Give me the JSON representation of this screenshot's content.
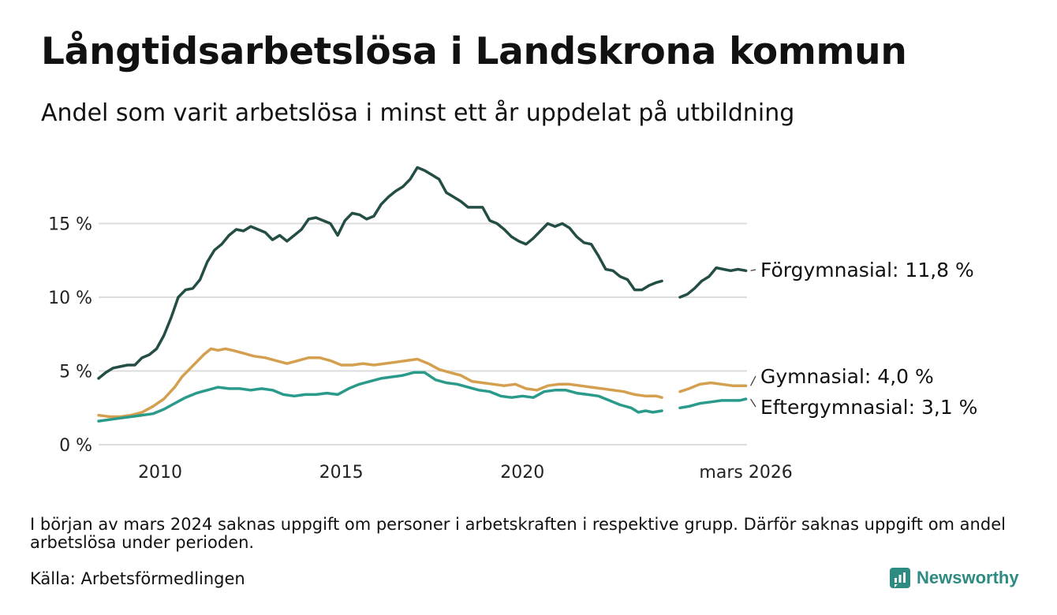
{
  "title": "Långtidsarbetslösa i Landskrona kommun",
  "subtitle": "Andel som varit arbetslösa i minst ett år uppdelat på utbildning",
  "footnote": "I början av mars 2024 saknas uppgift om personer i arbetskraften i respektive grupp. Därför saknas uppgift om andel arbetslösa under perioden.",
  "source": "Källa: Arbetsförmedlingen",
  "brand": "Newsworthy",
  "chart_data": {
    "type": "line",
    "title": "Långtidsarbetslösa i Landskrona kommun",
    "xlabel": "",
    "ylabel": "",
    "xlim": [
      2008.3,
      2026.2
    ],
    "ylim": [
      0,
      20
    ],
    "grid": true,
    "x_ticks": [
      {
        "value": 2010,
        "label": "2010"
      },
      {
        "value": 2015,
        "label": "2015"
      },
      {
        "value": 2020,
        "label": "2020"
      },
      {
        "value": 2026.17,
        "label": "mars 2026"
      }
    ],
    "y_ticks": [
      {
        "value": 0,
        "label": "0 %"
      },
      {
        "value": 5,
        "label": "5 %"
      },
      {
        "value": 10,
        "label": "10 %"
      },
      {
        "value": 15,
        "label": "15 %"
      }
    ],
    "gap": [
      2023.9,
      2024.3
    ],
    "series": [
      {
        "name": "Förgymnasial",
        "label": "Förgymnasial: 11,8 %",
        "color": "#234d45",
        "points": [
          [
            2008.3,
            4.5
          ],
          [
            2008.5,
            4.9
          ],
          [
            2008.7,
            5.2
          ],
          [
            2008.9,
            5.3
          ],
          [
            2009.1,
            5.4
          ],
          [
            2009.3,
            5.4
          ],
          [
            2009.5,
            5.9
          ],
          [
            2009.7,
            6.1
          ],
          [
            2009.9,
            6.5
          ],
          [
            2010.1,
            7.4
          ],
          [
            2010.3,
            8.6
          ],
          [
            2010.5,
            10.0
          ],
          [
            2010.7,
            10.5
          ],
          [
            2010.9,
            10.6
          ],
          [
            2011.1,
            11.2
          ],
          [
            2011.3,
            12.4
          ],
          [
            2011.5,
            13.2
          ],
          [
            2011.7,
            13.6
          ],
          [
            2011.9,
            14.2
          ],
          [
            2012.1,
            14.6
          ],
          [
            2012.3,
            14.5
          ],
          [
            2012.5,
            14.8
          ],
          [
            2012.7,
            14.6
          ],
          [
            2012.9,
            14.4
          ],
          [
            2013.1,
            13.9
          ],
          [
            2013.3,
            14.2
          ],
          [
            2013.5,
            13.8
          ],
          [
            2013.7,
            14.2
          ],
          [
            2013.9,
            14.6
          ],
          [
            2014.1,
            15.3
          ],
          [
            2014.3,
            15.4
          ],
          [
            2014.5,
            15.2
          ],
          [
            2014.7,
            15.0
          ],
          [
            2014.9,
            14.2
          ],
          [
            2015.1,
            15.2
          ],
          [
            2015.3,
            15.7
          ],
          [
            2015.5,
            15.6
          ],
          [
            2015.7,
            15.3
          ],
          [
            2015.9,
            15.5
          ],
          [
            2016.1,
            16.3
          ],
          [
            2016.3,
            16.8
          ],
          [
            2016.5,
            17.2
          ],
          [
            2016.7,
            17.5
          ],
          [
            2016.9,
            18.0
          ],
          [
            2017.1,
            18.8
          ],
          [
            2017.3,
            18.6
          ],
          [
            2017.5,
            18.3
          ],
          [
            2017.7,
            18.0
          ],
          [
            2017.9,
            17.1
          ],
          [
            2018.1,
            16.8
          ],
          [
            2018.3,
            16.5
          ],
          [
            2018.5,
            16.1
          ],
          [
            2018.7,
            16.1
          ],
          [
            2018.9,
            16.1
          ],
          [
            2019.1,
            15.2
          ],
          [
            2019.3,
            15.0
          ],
          [
            2019.5,
            14.6
          ],
          [
            2019.7,
            14.1
          ],
          [
            2019.9,
            13.8
          ],
          [
            2020.1,
            13.6
          ],
          [
            2020.3,
            14.0
          ],
          [
            2020.5,
            14.5
          ],
          [
            2020.7,
            15.0
          ],
          [
            2020.9,
            14.8
          ],
          [
            2021.1,
            15.0
          ],
          [
            2021.3,
            14.7
          ],
          [
            2021.5,
            14.1
          ],
          [
            2021.7,
            13.7
          ],
          [
            2021.9,
            13.6
          ],
          [
            2022.1,
            12.8
          ],
          [
            2022.3,
            11.9
          ],
          [
            2022.5,
            11.8
          ],
          [
            2022.7,
            11.4
          ],
          [
            2022.9,
            11.2
          ],
          [
            2023.1,
            10.5
          ],
          [
            2023.3,
            10.5
          ],
          [
            2023.5,
            10.8
          ],
          [
            2023.7,
            11.0
          ],
          [
            2023.85,
            11.1
          ],
          [
            2024.35,
            10.0
          ],
          [
            2024.55,
            10.2
          ],
          [
            2024.75,
            10.6
          ],
          [
            2024.95,
            11.1
          ],
          [
            2025.15,
            11.4
          ],
          [
            2025.35,
            12.0
          ],
          [
            2025.55,
            11.9
          ],
          [
            2025.75,
            11.8
          ],
          [
            2025.95,
            11.9
          ],
          [
            2026.17,
            11.8
          ]
        ]
      },
      {
        "name": "Gymnasial",
        "label": "Gymnasial:  4,0 %",
        "color": "#d4a04f",
        "points": [
          [
            2008.3,
            2.0
          ],
          [
            2008.6,
            1.9
          ],
          [
            2008.9,
            1.9
          ],
          [
            2009.2,
            2.0
          ],
          [
            2009.5,
            2.2
          ],
          [
            2009.8,
            2.6
          ],
          [
            2010.1,
            3.1
          ],
          [
            2010.4,
            3.9
          ],
          [
            2010.6,
            4.6
          ],
          [
            2010.8,
            5.1
          ],
          [
            2011.0,
            5.6
          ],
          [
            2011.2,
            6.1
          ],
          [
            2011.4,
            6.5
          ],
          [
            2011.6,
            6.4
          ],
          [
            2011.8,
            6.5
          ],
          [
            2012.0,
            6.4
          ],
          [
            2012.3,
            6.2
          ],
          [
            2012.6,
            6.0
          ],
          [
            2012.9,
            5.9
          ],
          [
            2013.2,
            5.7
          ],
          [
            2013.5,
            5.5
          ],
          [
            2013.8,
            5.7
          ],
          [
            2014.1,
            5.9
          ],
          [
            2014.4,
            5.9
          ],
          [
            2014.7,
            5.7
          ],
          [
            2015.0,
            5.4
          ],
          [
            2015.3,
            5.4
          ],
          [
            2015.6,
            5.5
          ],
          [
            2015.9,
            5.4
          ],
          [
            2016.2,
            5.5
          ],
          [
            2016.5,
            5.6
          ],
          [
            2016.8,
            5.7
          ],
          [
            2017.1,
            5.8
          ],
          [
            2017.4,
            5.5
          ],
          [
            2017.7,
            5.1
          ],
          [
            2018.0,
            4.9
          ],
          [
            2018.3,
            4.7
          ],
          [
            2018.6,
            4.3
          ],
          [
            2018.9,
            4.2
          ],
          [
            2019.2,
            4.1
          ],
          [
            2019.5,
            4.0
          ],
          [
            2019.8,
            4.1
          ],
          [
            2020.1,
            3.8
          ],
          [
            2020.4,
            3.7
          ],
          [
            2020.7,
            4.0
          ],
          [
            2021.0,
            4.1
          ],
          [
            2021.3,
            4.1
          ],
          [
            2021.6,
            4.0
          ],
          [
            2021.9,
            3.9
          ],
          [
            2022.2,
            3.8
          ],
          [
            2022.5,
            3.7
          ],
          [
            2022.8,
            3.6
          ],
          [
            2023.1,
            3.4
          ],
          [
            2023.4,
            3.3
          ],
          [
            2023.7,
            3.3
          ],
          [
            2023.85,
            3.2
          ],
          [
            2024.35,
            3.6
          ],
          [
            2024.6,
            3.8
          ],
          [
            2024.9,
            4.1
          ],
          [
            2025.2,
            4.2
          ],
          [
            2025.5,
            4.1
          ],
          [
            2025.8,
            4.0
          ],
          [
            2026.0,
            4.0
          ],
          [
            2026.17,
            4.0
          ]
        ]
      },
      {
        "name": "Eftergymnasial",
        "label": "Eftergymnasial:  3,1 %",
        "color": "#2a9a8a",
        "points": [
          [
            2008.3,
            1.6
          ],
          [
            2008.6,
            1.7
          ],
          [
            2008.9,
            1.8
          ],
          [
            2009.2,
            1.9
          ],
          [
            2009.5,
            2.0
          ],
          [
            2009.8,
            2.1
          ],
          [
            2010.1,
            2.4
          ],
          [
            2010.4,
            2.8
          ],
          [
            2010.7,
            3.2
          ],
          [
            2011.0,
            3.5
          ],
          [
            2011.3,
            3.7
          ],
          [
            2011.6,
            3.9
          ],
          [
            2011.9,
            3.8
          ],
          [
            2012.2,
            3.8
          ],
          [
            2012.5,
            3.7
          ],
          [
            2012.8,
            3.8
          ],
          [
            2013.1,
            3.7
          ],
          [
            2013.4,
            3.4
          ],
          [
            2013.7,
            3.3
          ],
          [
            2014.0,
            3.4
          ],
          [
            2014.3,
            3.4
          ],
          [
            2014.6,
            3.5
          ],
          [
            2014.9,
            3.4
          ],
          [
            2015.2,
            3.8
          ],
          [
            2015.5,
            4.1
          ],
          [
            2015.8,
            4.3
          ],
          [
            2016.1,
            4.5
          ],
          [
            2016.4,
            4.6
          ],
          [
            2016.7,
            4.7
          ],
          [
            2017.0,
            4.9
          ],
          [
            2017.3,
            4.9
          ],
          [
            2017.6,
            4.4
          ],
          [
            2017.9,
            4.2
          ],
          [
            2018.2,
            4.1
          ],
          [
            2018.5,
            3.9
          ],
          [
            2018.8,
            3.7
          ],
          [
            2019.1,
            3.6
          ],
          [
            2019.4,
            3.3
          ],
          [
            2019.7,
            3.2
          ],
          [
            2020.0,
            3.3
          ],
          [
            2020.3,
            3.2
          ],
          [
            2020.6,
            3.6
          ],
          [
            2020.9,
            3.7
          ],
          [
            2021.2,
            3.7
          ],
          [
            2021.5,
            3.5
          ],
          [
            2021.8,
            3.4
          ],
          [
            2022.1,
            3.3
          ],
          [
            2022.4,
            3.0
          ],
          [
            2022.7,
            2.7
          ],
          [
            2023.0,
            2.5
          ],
          [
            2023.2,
            2.2
          ],
          [
            2023.4,
            2.3
          ],
          [
            2023.6,
            2.2
          ],
          [
            2023.85,
            2.3
          ],
          [
            2024.35,
            2.5
          ],
          [
            2024.6,
            2.6
          ],
          [
            2024.9,
            2.8
          ],
          [
            2025.2,
            2.9
          ],
          [
            2025.5,
            3.0
          ],
          [
            2025.8,
            3.0
          ],
          [
            2026.0,
            3.0
          ],
          [
            2026.17,
            3.1
          ]
        ]
      }
    ]
  }
}
